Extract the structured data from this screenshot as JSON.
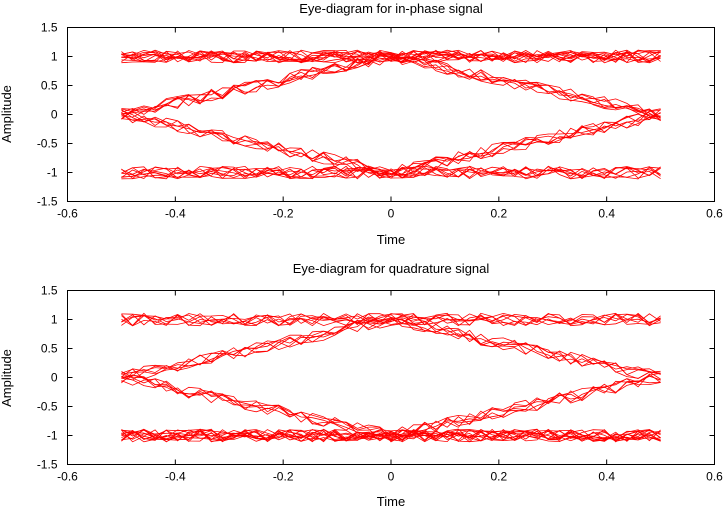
{
  "chart_data": [
    {
      "type": "line",
      "title": "Eye-diagram for in-phase signal",
      "xlabel": "Time",
      "ylabel": "Amplitude",
      "xlim": [
        -0.6,
        0.6
      ],
      "ylim": [
        -1.5,
        1.5
      ],
      "xticks": [
        -0.6,
        -0.4,
        -0.2,
        0,
        0.2,
        0.4,
        0.6
      ],
      "yticks": [
        -1.5,
        -1,
        -0.5,
        0,
        0.5,
        1,
        1.5
      ],
      "xtick_labels": [
        "-0.6",
        "-0.4",
        "-0.2",
        "0",
        "0.2",
        "0.4",
        "0.6"
      ],
      "ytick_labels": [
        "-1.5",
        "-1",
        "-0.5",
        "0",
        "0.5",
        "1",
        "1.5"
      ],
      "grid": false,
      "color": "#ff0000",
      "x_range_of_traces": [
        -0.5,
        0.5
      ],
      "series": [
        {
          "x": [
            -0.5,
            -0.25,
            0,
            0.25,
            0.5
          ],
          "values": [
            1,
            1,
            1,
            1,
            1
          ]
        },
        {
          "x": [
            -0.5,
            -0.25,
            0,
            0.25,
            0.5
          ],
          "values": [
            1,
            1,
            1,
            1,
            1
          ]
        },
        {
          "x": [
            -0.5,
            -0.25,
            0,
            0.25,
            0.5
          ],
          "values": [
            1,
            1,
            1,
            1,
            1
          ]
        },
        {
          "x": [
            -0.5,
            -0.25,
            0,
            0.25,
            0.5
          ],
          "values": [
            1,
            1,
            1,
            1,
            1
          ]
        },
        {
          "x": [
            -0.5,
            -0.25,
            0,
            0.25,
            0.5
          ],
          "values": [
            1,
            1,
            1,
            1,
            1
          ]
        },
        {
          "x": [
            -0.5,
            -0.25,
            0,
            0.25,
            0.5
          ],
          "values": [
            1,
            1,
            1,
            1,
            1
          ]
        },
        {
          "x": [
            -0.5,
            -0.25,
            0,
            0.25,
            0.5
          ],
          "values": [
            1,
            1,
            1,
            1,
            1
          ]
        },
        {
          "x": [
            -0.5,
            -0.25,
            0,
            0.25,
            0.5
          ],
          "values": [
            1,
            1,
            1,
            1,
            1
          ]
        },
        {
          "x": [
            -0.5,
            -0.25,
            0,
            0.25,
            0.5
          ],
          "values": [
            1,
            1,
            1,
            1,
            1
          ]
        },
        {
          "x": [
            -0.5,
            -0.25,
            0,
            0.25,
            0.5
          ],
          "values": [
            0,
            0.5,
            1,
            1,
            1
          ]
        },
        {
          "x": [
            -0.5,
            -0.25,
            0,
            0.25,
            0.5
          ],
          "values": [
            0,
            0.5,
            1,
            1,
            1
          ]
        },
        {
          "x": [
            -0.5,
            -0.25,
            0,
            0.25,
            0.5
          ],
          "values": [
            0,
            0.5,
            1,
            1,
            1
          ]
        },
        {
          "x": [
            -0.5,
            -0.25,
            0,
            0.25,
            0.5
          ],
          "values": [
            0,
            0.5,
            1,
            0.5,
            0
          ]
        },
        {
          "x": [
            -0.5,
            -0.25,
            0,
            0.25,
            0.5
          ],
          "values": [
            0,
            0.5,
            1,
            0.5,
            0
          ]
        },
        {
          "x": [
            -0.5,
            -0.25,
            0,
            0.25,
            0.5
          ],
          "values": [
            0,
            0.5,
            1,
            0.5,
            0
          ]
        },
        {
          "x": [
            -0.5,
            -0.25,
            0,
            0.25,
            0.5
          ],
          "values": [
            0,
            0.5,
            1,
            0.5,
            0
          ]
        },
        {
          "x": [
            -0.5,
            -0.25,
            0,
            0.25,
            0.5
          ],
          "values": [
            1,
            1,
            1,
            0.5,
            0
          ]
        },
        {
          "x": [
            -0.5,
            -0.25,
            0,
            0.25,
            0.5
          ],
          "values": [
            1,
            1,
            1,
            0.5,
            0
          ]
        },
        {
          "x": [
            -0.5,
            -0.25,
            0,
            0.25,
            0.5
          ],
          "values": [
            1,
            1,
            1,
            0.5,
            0
          ]
        },
        {
          "x": [
            -0.5,
            -0.25,
            0,
            0.25,
            0.5
          ],
          "values": [
            0,
            -0.5,
            -1,
            -0.5,
            0
          ]
        },
        {
          "x": [
            -0.5,
            -0.25,
            0,
            0.25,
            0.5
          ],
          "values": [
            0,
            -0.5,
            -1,
            -0.5,
            0
          ]
        },
        {
          "x": [
            -0.5,
            -0.25,
            0,
            0.25,
            0.5
          ],
          "values": [
            0,
            -0.5,
            -1,
            -0.5,
            0
          ]
        },
        {
          "x": [
            -0.5,
            -0.25,
            0,
            0.25,
            0.5
          ],
          "values": [
            0,
            -0.5,
            -1,
            -0.5,
            0
          ]
        },
        {
          "x": [
            -0.5,
            -0.25,
            0,
            0.25,
            0.5
          ],
          "values": [
            0,
            -0.5,
            -1,
            -1,
            -1
          ]
        },
        {
          "x": [
            -0.5,
            -0.25,
            0,
            0.25,
            0.5
          ],
          "values": [
            0,
            -0.5,
            -1,
            -1,
            -1
          ]
        },
        {
          "x": [
            -0.5,
            -0.25,
            0,
            0.25,
            0.5
          ],
          "values": [
            -1,
            -1,
            -1,
            -0.5,
            0
          ]
        },
        {
          "x": [
            -0.5,
            -0.25,
            0,
            0.25,
            0.5
          ],
          "values": [
            -1,
            -1,
            -1,
            -0.5,
            0
          ]
        },
        {
          "x": [
            -0.5,
            -0.25,
            0,
            0.25,
            0.5
          ],
          "values": [
            -1,
            -1,
            -1,
            -0.5,
            0
          ]
        },
        {
          "x": [
            -0.5,
            -0.25,
            0,
            0.25,
            0.5
          ],
          "values": [
            -1,
            -1,
            -1,
            -1,
            -1
          ]
        },
        {
          "x": [
            -0.5,
            -0.25,
            0,
            0.25,
            0.5
          ],
          "values": [
            -1,
            -1,
            -1,
            -1,
            -1
          ]
        },
        {
          "x": [
            -0.5,
            -0.25,
            0,
            0.25,
            0.5
          ],
          "values": [
            -1,
            -1,
            -1,
            -1,
            -1
          ]
        },
        {
          "x": [
            -0.5,
            -0.25,
            0,
            0.25,
            0.5
          ],
          "values": [
            -1,
            -1,
            -1,
            -1,
            -1
          ]
        },
        {
          "x": [
            -0.5,
            -0.25,
            0,
            0.25,
            0.5
          ],
          "values": [
            -1,
            -1,
            -1,
            -1,
            -1
          ]
        },
        {
          "x": [
            -0.5,
            -0.25,
            0,
            0.25,
            0.5
          ],
          "values": [
            -1,
            -1,
            -1,
            -1,
            -1
          ]
        }
      ]
    },
    {
      "type": "line",
      "title": "Eye-diagram for quadrature signal",
      "xlabel": "Time",
      "ylabel": "Amplitude",
      "xlim": [
        -0.6,
        0.6
      ],
      "ylim": [
        -1.5,
        1.5
      ],
      "xticks": [
        -0.6,
        -0.4,
        -0.2,
        0,
        0.2,
        0.4,
        0.6
      ],
      "yticks": [
        -1.5,
        -1,
        -0.5,
        0,
        0.5,
        1,
        1.5
      ],
      "xtick_labels": [
        "-0.6",
        "-0.4",
        "-0.2",
        "0",
        "0.2",
        "0.4",
        "0.6"
      ],
      "ytick_labels": [
        "-1.5",
        "-1",
        "-0.5",
        "0",
        "0.5",
        "1",
        "1.5"
      ],
      "grid": false,
      "color": "#ff0000",
      "x_range_of_traces": [
        -0.5,
        0.5
      ],
      "series": [
        {
          "x": [
            -0.5,
            -0.25,
            0,
            0.25,
            0.5
          ],
          "values": [
            1,
            1,
            1,
            1,
            1
          ]
        },
        {
          "x": [
            -0.5,
            -0.25,
            0,
            0.25,
            0.5
          ],
          "values": [
            1,
            1,
            1,
            1,
            1
          ]
        },
        {
          "x": [
            -0.5,
            -0.25,
            0,
            0.25,
            0.5
          ],
          "values": [
            1,
            1,
            1,
            1,
            1
          ]
        },
        {
          "x": [
            -0.5,
            -0.25,
            0,
            0.25,
            0.5
          ],
          "values": [
            1,
            1,
            1,
            1,
            1
          ]
        },
        {
          "x": [
            -0.5,
            -0.25,
            0,
            0.25,
            0.5
          ],
          "values": [
            1,
            1,
            1,
            1,
            1
          ]
        },
        {
          "x": [
            -0.5,
            -0.25,
            0,
            0.25,
            0.5
          ],
          "values": [
            0,
            0.5,
            1,
            1,
            1
          ]
        },
        {
          "x": [
            -0.5,
            -0.25,
            0,
            0.25,
            0.5
          ],
          "values": [
            0,
            0.5,
            1,
            1,
            1
          ]
        },
        {
          "x": [
            -0.5,
            -0.25,
            0,
            0.25,
            0.5
          ],
          "values": [
            0,
            0.5,
            1,
            0.5,
            0
          ]
        },
        {
          "x": [
            -0.5,
            -0.25,
            0,
            0.25,
            0.5
          ],
          "values": [
            0,
            0.5,
            1,
            0.5,
            0
          ]
        },
        {
          "x": [
            -0.5,
            -0.25,
            0,
            0.25,
            0.5
          ],
          "values": [
            0,
            0.5,
            1,
            0.5,
            0
          ]
        },
        {
          "x": [
            -0.5,
            -0.25,
            0,
            0.25,
            0.5
          ],
          "values": [
            0,
            0.5,
            1,
            0.5,
            0
          ]
        },
        {
          "x": [
            -0.5,
            -0.25,
            0,
            0.25,
            0.5
          ],
          "values": [
            1,
            1,
            1,
            0.5,
            0
          ]
        },
        {
          "x": [
            -0.5,
            -0.25,
            0,
            0.25,
            0.5
          ],
          "values": [
            1,
            1,
            1,
            0.5,
            0
          ]
        },
        {
          "x": [
            -0.5,
            -0.25,
            0,
            0.25,
            0.5
          ],
          "values": [
            0,
            -0.5,
            -1,
            -0.5,
            0
          ]
        },
        {
          "x": [
            -0.5,
            -0.25,
            0,
            0.25,
            0.5
          ],
          "values": [
            0,
            -0.5,
            -1,
            -0.5,
            0
          ]
        },
        {
          "x": [
            -0.5,
            -0.25,
            0,
            0.25,
            0.5
          ],
          "values": [
            0,
            -0.5,
            -1,
            -0.5,
            0
          ]
        },
        {
          "x": [
            -0.5,
            -0.25,
            0,
            0.25,
            0.5
          ],
          "values": [
            0,
            -0.5,
            -1,
            -1,
            -1
          ]
        },
        {
          "x": [
            -0.5,
            -0.25,
            0,
            0.25,
            0.5
          ],
          "values": [
            0,
            -0.5,
            -1,
            -1,
            -1
          ]
        },
        {
          "x": [
            -0.5,
            -0.25,
            0,
            0.25,
            0.5
          ],
          "values": [
            0,
            -0.5,
            -1,
            -1,
            -1
          ]
        },
        {
          "x": [
            -0.5,
            -0.25,
            0,
            0.25,
            0.5
          ],
          "values": [
            -1,
            -1,
            -1,
            -0.5,
            0
          ]
        },
        {
          "x": [
            -0.5,
            -0.25,
            0,
            0.25,
            0.5
          ],
          "values": [
            -1,
            -1,
            -1,
            -0.5,
            0
          ]
        },
        {
          "x": [
            -0.5,
            -0.25,
            0,
            0.25,
            0.5
          ],
          "values": [
            -1,
            -1,
            -1,
            -0.5,
            0
          ]
        },
        {
          "x": [
            -0.5,
            -0.25,
            0,
            0.25,
            0.5
          ],
          "values": [
            -1,
            -1,
            -1,
            -1,
            -1
          ]
        },
        {
          "x": [
            -0.5,
            -0.25,
            0,
            0.25,
            0.5
          ],
          "values": [
            -1,
            -1,
            -1,
            -1,
            -1
          ]
        },
        {
          "x": [
            -0.5,
            -0.25,
            0,
            0.25,
            0.5
          ],
          "values": [
            -1,
            -1,
            -1,
            -1,
            -1
          ]
        },
        {
          "x": [
            -0.5,
            -0.25,
            0,
            0.25,
            0.5
          ],
          "values": [
            -1,
            -1,
            -1,
            -1,
            -1
          ]
        },
        {
          "x": [
            -0.5,
            -0.25,
            0,
            0.25,
            0.5
          ],
          "values": [
            -1,
            -1,
            -1,
            -1,
            -1
          ]
        },
        {
          "x": [
            -0.5,
            -0.25,
            0,
            0.25,
            0.5
          ],
          "values": [
            -1,
            -1,
            -1,
            -1,
            -1
          ]
        },
        {
          "x": [
            -0.5,
            -0.25,
            0,
            0.25,
            0.5
          ],
          "values": [
            -1,
            -1,
            -1,
            -1,
            -1
          ]
        },
        {
          "x": [
            -0.5,
            -0.25,
            0,
            0.25,
            0.5
          ],
          "values": [
            -1,
            -1,
            -1,
            -1,
            -1
          ]
        },
        {
          "x": [
            -0.5,
            -0.25,
            0,
            0.25,
            0.5
          ],
          "values": [
            -1,
            -1,
            -1,
            -1,
            -1
          ]
        },
        {
          "x": [
            -0.5,
            -0.25,
            0,
            0.25,
            0.5
          ],
          "values": [
            -1,
            -1,
            -1,
            -1,
            -1
          ]
        }
      ]
    }
  ]
}
